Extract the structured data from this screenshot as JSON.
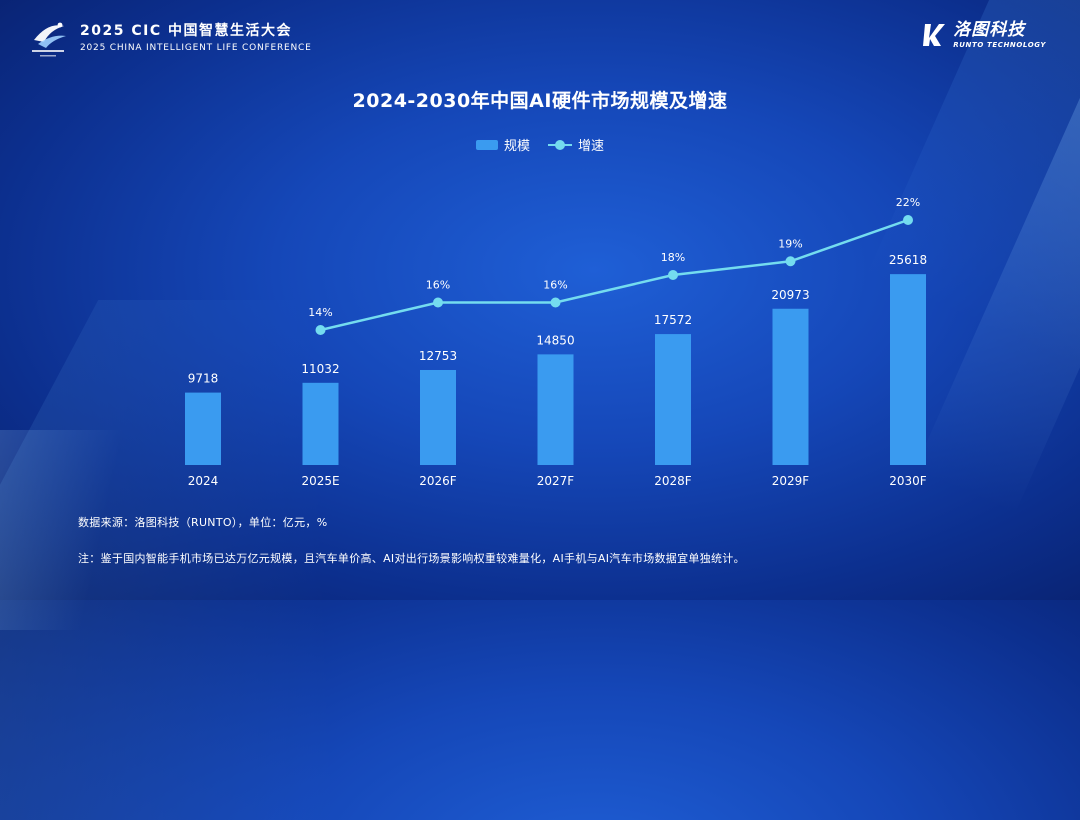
{
  "header": {
    "conference_title": "2025 CIC 中国智慧生活大会",
    "conference_subtitle": "2025 CHINA INTELLIGENT LIFE CONFERENCE",
    "brand_name": "洛图科技",
    "brand_en": "RUNTO TECHNOLOGY"
  },
  "chart_data": {
    "type": "bar",
    "title": "2024-2030年中国AI硬件市场规模及增速",
    "categories": [
      "2024",
      "2025E",
      "2026F",
      "2027F",
      "2028F",
      "2029F",
      "2030F"
    ],
    "series": [
      {
        "name": "规模",
        "type": "bar",
        "values": [
          9718,
          11032,
          12753,
          14850,
          17572,
          20973,
          25618
        ],
        "color": "#3a9bf0"
      },
      {
        "name": "增速",
        "type": "line",
        "values": [
          null,
          14,
          16,
          16,
          18,
          19,
          22
        ],
        "labels": [
          "",
          "14%",
          "16%",
          "16%",
          "18%",
          "19%",
          "22%"
        ],
        "color": "#74dcef"
      }
    ],
    "legend_position": "top-center",
    "grid": false
  },
  "footer": {
    "source": "数据来源：洛图科技（RUNTO），单位：亿元，%",
    "note": "注：鉴于国内智能手机市场已达万亿元规模，且汽车单价高、AI对出行场景影响权重较难量化，AI手机与AI汽车市场数据宜单独统计。"
  },
  "colors": {
    "background": "#1547b8",
    "bar": "#3a9bf0",
    "line": "#74dcef"
  }
}
